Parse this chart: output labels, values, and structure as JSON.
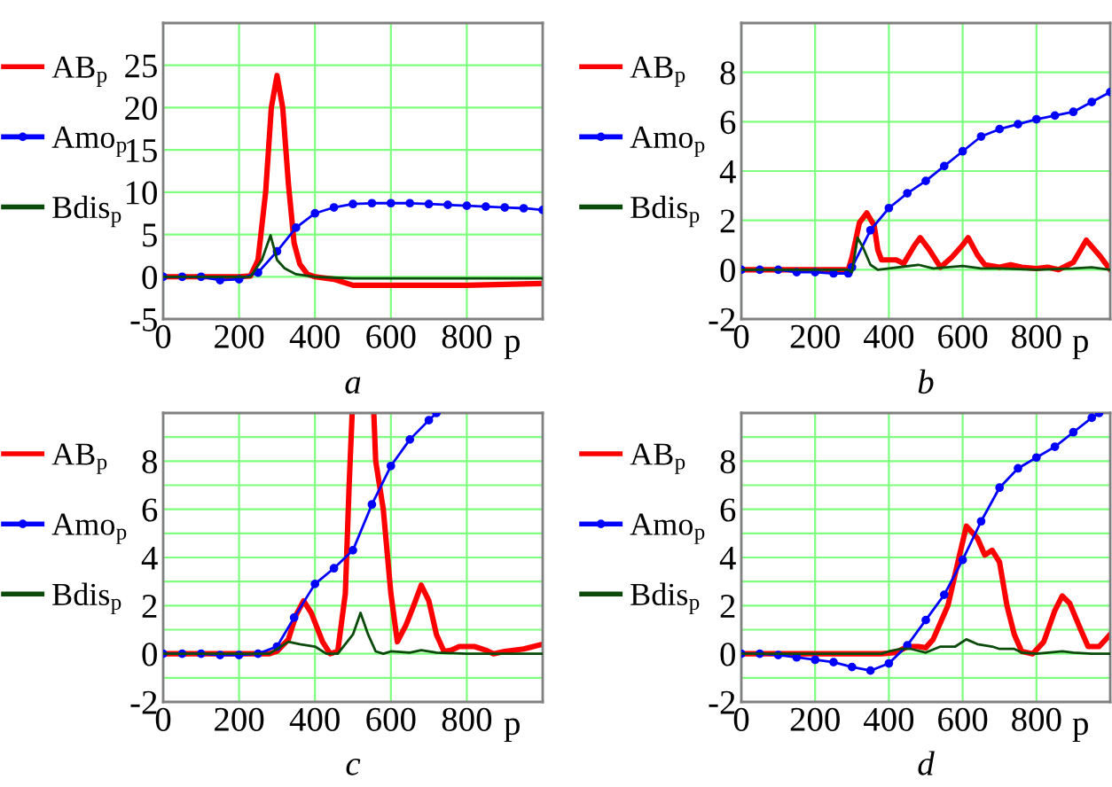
{
  "chart_data": [
    {
      "type": "line",
      "title": "a",
      "xlabel": "p",
      "xlim": [
        0,
        1000
      ],
      "xticks": [
        0,
        200,
        400,
        600,
        800
      ],
      "ylim": [
        -5,
        30
      ],
      "yticks": [
        -5,
        0,
        5,
        10,
        15,
        20,
        25,
        {
          "value": 30,
          "label": null
        }
      ],
      "grid": true,
      "legend": "left",
      "series": [
        {
          "name": "AB$_{p}$",
          "color": "#ff0000",
          "marker": "none",
          "x": [
            0,
            100,
            200,
            230,
            250,
            270,
            285,
            300,
            315,
            330,
            345,
            360,
            380,
            400,
            450,
            500,
            600,
            800,
            1000
          ],
          "values": [
            0,
            0,
            0,
            0.1,
            2,
            10,
            20,
            23.8,
            20,
            11,
            4,
            1.5,
            0.3,
            0,
            -0.3,
            -1,
            -1,
            -1,
            -0.8
          ]
        },
        {
          "name": "Amo$_{p}$",
          "color": "#0000ff",
          "marker": "circle",
          "x": [
            0,
            50,
            100,
            150,
            200,
            250,
            300,
            350,
            400,
            450,
            500,
            550,
            600,
            650,
            700,
            750,
            800,
            850,
            900,
            950,
            1000
          ],
          "values": [
            0,
            0,
            0,
            -0.4,
            -0.3,
            0.5,
            3,
            5.8,
            7.5,
            8.2,
            8.6,
            8.7,
            8.7,
            8.7,
            8.6,
            8.5,
            8.4,
            8.3,
            8.2,
            8.1,
            7.9
          ]
        },
        {
          "name": "Bdis$_{p}$",
          "color": "#0a4a0a",
          "marker": "none",
          "x": [
            0,
            100,
            200,
            230,
            260,
            283,
            300,
            320,
            350,
            400,
            450,
            500,
            1000
          ],
          "values": [
            0,
            0,
            0,
            0,
            2,
            4.9,
            2,
            1,
            0.3,
            0,
            -0.1,
            -0.2,
            -0.2
          ]
        }
      ]
    },
    {
      "type": "line",
      "title": "b",
      "xlabel": "p",
      "xlim": [
        0,
        1000
      ],
      "xticks": [
        0,
        200,
        400,
        600,
        800
      ],
      "ylim": [
        -2,
        10
      ],
      "yticks": [
        -2,
        0,
        2,
        4,
        6,
        8,
        {
          "value": 10,
          "label": null
        }
      ],
      "grid": true,
      "legend": "left",
      "series": [
        {
          "name": "AB$_{p}$",
          "color": "#ff0000",
          "marker": "none",
          "x": [
            0,
            100,
            200,
            290,
            300,
            320,
            340,
            360,
            370,
            380,
            420,
            440,
            470,
            485,
            510,
            540,
            570,
            600,
            615,
            640,
            660,
            700,
            730,
            760,
            800,
            830,
            860,
            900,
            935,
            970,
            1000
          ],
          "values": [
            0,
            0,
            0,
            0,
            0.5,
            1.9,
            2.3,
            1.8,
            0.8,
            0.4,
            0.4,
            0.25,
            1.0,
            1.3,
            0.8,
            0.1,
            0.5,
            1.0,
            1.3,
            0.6,
            0.2,
            0.1,
            0.2,
            0.1,
            0.05,
            0.1,
            0,
            0.3,
            1.2,
            0.6,
            0
          ]
        },
        {
          "name": "Amo$_{p}$",
          "color": "#0000ff",
          "marker": "circle",
          "x": [
            0,
            50,
            100,
            150,
            200,
            250,
            290,
            300,
            350,
            400,
            450,
            500,
            550,
            600,
            650,
            700,
            750,
            800,
            850,
            900,
            950,
            1000
          ],
          "values": [
            0,
            0,
            0,
            -0.1,
            -0.1,
            -0.15,
            -0.15,
            0.1,
            1.6,
            2.5,
            3.1,
            3.6,
            4.2,
            4.8,
            5.4,
            5.7,
            5.9,
            6.1,
            6.25,
            6.4,
            6.8,
            7.2
          ]
        },
        {
          "name": "Bdis$_{p}$",
          "color": "#0a4a0a",
          "marker": "none",
          "x": [
            0,
            100,
            200,
            290,
            300,
            315,
            330,
            350,
            370,
            400,
            480,
            520,
            600,
            650,
            700,
            800,
            900,
            950,
            1000
          ],
          "values": [
            0,
            0,
            0,
            0,
            -0.1,
            1.3,
            0.9,
            0.2,
            0,
            0.05,
            0.2,
            0.05,
            0.15,
            0.05,
            0.05,
            0,
            0.05,
            0.1,
            0
          ]
        }
      ]
    },
    {
      "type": "line",
      "title": "c",
      "xlabel": "p",
      "xlim": [
        0,
        1000
      ],
      "xticks": [
        0,
        200,
        400,
        600,
        800
      ],
      "ylim": [
        -2,
        10
      ],
      "yticks": [
        -2,
        {
          "value": -1,
          "label": null
        },
        0,
        {
          "value": 1,
          "label": null
        },
        2,
        {
          "value": 3,
          "label": null
        },
        4,
        {
          "value": 5,
          "label": null
        },
        6,
        {
          "value": 7,
          "label": null
        },
        8,
        {
          "value": 9,
          "label": null
        },
        {
          "value": 10,
          "label": null
        }
      ],
      "grid": true,
      "legend": "left",
      "series": [
        {
          "name": "AB$_{p}$",
          "color": "#ff0000",
          "marker": "none",
          "x": [
            0,
            100,
            200,
            280,
            300,
            330,
            350,
            370,
            390,
            420,
            440,
            460,
            480,
            490,
            498,
            525,
            555,
            560,
            580,
            600,
            617,
            640,
            660,
            680,
            700,
            720,
            740,
            760,
            780,
            820,
            850,
            870,
            900,
            950,
            1000
          ],
          "values": [
            0,
            0,
            0,
            0,
            0.1,
            0.6,
            1.6,
            2.2,
            1.7,
            0.5,
            0,
            0.1,
            2.5,
            7,
            10,
            null,
            10,
            8,
            6,
            2.5,
            0.5,
            1.2,
            2.0,
            2.85,
            2.2,
            0.8,
            0.1,
            0.15,
            0.3,
            0.3,
            0.15,
            0,
            0.1,
            0.2,
            0.4
          ]
        },
        {
          "name": "Amo$_{p}$",
          "color": "#0000ff",
          "marker": "circle",
          "x": [
            0,
            50,
            100,
            150,
            200,
            250,
            300,
            345,
            400,
            450,
            500,
            550,
            600,
            650,
            700,
            720
          ],
          "values": [
            0,
            0,
            0,
            -0.05,
            -0.05,
            0,
            0.3,
            1.5,
            2.9,
            3.55,
            4.3,
            6.2,
            7.8,
            8.9,
            9.7,
            10
          ]
        },
        {
          "name": "Bdis$_{p}$",
          "color": "#0a4a0a",
          "marker": "none",
          "x": [
            0,
            100,
            200,
            280,
            330,
            360,
            400,
            430,
            460,
            500,
            520,
            540,
            560,
            580,
            600,
            650,
            680,
            720,
            800,
            1000
          ],
          "values": [
            0,
            0,
            0,
            0,
            0.5,
            0.4,
            0.3,
            0,
            0,
            0.8,
            1.7,
            0.8,
            0.1,
            0,
            0.1,
            0.05,
            0.15,
            0.05,
            0,
            0
          ]
        }
      ]
    },
    {
      "type": "line",
      "title": "d",
      "xlabel": "p",
      "xlim": [
        0,
        1000
      ],
      "xticks": [
        0,
        200,
        400,
        600,
        800
      ],
      "ylim": [
        -2,
        10
      ],
      "yticks": [
        -2,
        {
          "value": -1,
          "label": null
        },
        0,
        {
          "value": 1,
          "label": null
        },
        2,
        {
          "value": 3,
          "label": null
        },
        4,
        {
          "value": 5,
          "label": null
        },
        6,
        {
          "value": 7,
          "label": null
        },
        8,
        {
          "value": 9,
          "label": null
        },
        {
          "value": 10,
          "label": null
        }
      ],
      "grid": true,
      "legend": "left",
      "series": [
        {
          "name": "AB$_{p}$",
          "color": "#ff0000",
          "marker": "none",
          "x": [
            0,
            100,
            200,
            300,
            380,
            420,
            450,
            480,
            500,
            520,
            560,
            590,
            610,
            640,
            660,
            680,
            700,
            720,
            740,
            760,
            790,
            820,
            850,
            870,
            890,
            920,
            940,
            970,
            1000
          ],
          "values": [
            0,
            0,
            0,
            0,
            0,
            0.05,
            0.3,
            0.3,
            0.25,
            0.6,
            2,
            4,
            5.3,
            4.8,
            4.1,
            4.3,
            3.8,
            2,
            0.8,
            0.1,
            0,
            0.5,
            1.8,
            2.4,
            2.1,
            1,
            0.3,
            0.3,
            0.8
          ]
        },
        {
          "name": "Amo$_{p}$",
          "color": "#0000ff",
          "marker": "circle",
          "x": [
            0,
            50,
            100,
            150,
            200,
            250,
            300,
            350,
            400,
            450,
            500,
            550,
            600,
            650,
            700,
            750,
            800,
            850,
            900,
            950,
            970
          ],
          "values": [
            0,
            0,
            -0.05,
            -0.15,
            -0.25,
            -0.35,
            -0.55,
            -0.7,
            -0.4,
            0.35,
            1.4,
            2.45,
            3.9,
            5.5,
            6.9,
            7.7,
            8.15,
            8.6,
            9.2,
            9.8,
            10
          ]
        },
        {
          "name": "Bdis$_{p}$",
          "color": "#0a4a0a",
          "marker": "none",
          "x": [
            0,
            100,
            200,
            300,
            380,
            400,
            430,
            460,
            500,
            540,
            580,
            610,
            640,
            680,
            700,
            740,
            760,
            800,
            870,
            900,
            950,
            1000
          ],
          "values": [
            0,
            0,
            0,
            0,
            0,
            0.1,
            0.2,
            0.2,
            0.05,
            0.3,
            0.3,
            0.6,
            0.4,
            0.3,
            0.2,
            0.2,
            0.05,
            0,
            0.1,
            0.05,
            0,
            0
          ]
        }
      ]
    }
  ]
}
